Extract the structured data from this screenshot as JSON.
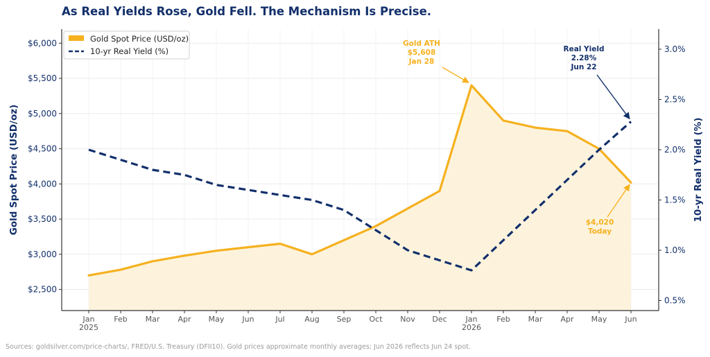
{
  "chart_data": {
    "type": "line",
    "title": "As Real Yields Rose, Gold Fell. The Mechanism Is Precise.",
    "categories": [
      "Jan",
      "Feb",
      "Mar",
      "Apr",
      "May",
      "Jun",
      "Jul",
      "Aug",
      "Sep",
      "Oct",
      "Nov",
      "Dec",
      "Jan",
      "Feb",
      "Mar",
      "Apr",
      "May",
      "Jun"
    ],
    "year_labels": [
      {
        "index": 0,
        "label": "2025"
      },
      {
        "index": 12,
        "label": "2026"
      }
    ],
    "left_axis": {
      "label": "Gold Spot Price (USD/oz)",
      "ylim": [
        2200,
        6200
      ],
      "ticks": [
        2500,
        3000,
        3500,
        4000,
        4500,
        5000,
        5500,
        6000
      ],
      "tick_labels": [
        "$2,500",
        "$3,000",
        "$3,500",
        "$4,000",
        "$4,500",
        "$5,000",
        "$5,500",
        "$6,000"
      ]
    },
    "right_axis": {
      "label": "10-yr Real Yield (%)",
      "ylim": [
        0.4,
        3.2
      ],
      "ticks": [
        0.5,
        1.0,
        1.5,
        2.0,
        2.5,
        3.0
      ],
      "tick_labels": [
        "0.5%",
        "1.0%",
        "1.5%",
        "2.0%",
        "2.5%",
        "3.0%"
      ]
    },
    "series": [
      {
        "name": "Gold Spot Price (USD/oz)",
        "axis": "left",
        "style": "solid",
        "fill": true,
        "color": "#f5b11f",
        "values": [
          2700,
          2780,
          2900,
          2980,
          3050,
          3100,
          3150,
          3000,
          3200,
          3400,
          3650,
          3900,
          5400,
          4900,
          4800,
          4750,
          4500,
          4020
        ]
      },
      {
        "name": "10-yr Real Yield (%)",
        "axis": "right",
        "style": "dashed",
        "color": "#13306b",
        "values": [
          2.0,
          1.9,
          1.8,
          1.75,
          1.65,
          1.6,
          1.55,
          1.5,
          1.4,
          1.2,
          1.0,
          0.9,
          0.8,
          1.1,
          1.4,
          1.7,
          2.0,
          2.28
        ]
      }
    ],
    "legend": {
      "placement": "top-left",
      "entries": [
        "Gold Spot Price (USD/oz)",
        "10-yr Real Yield (%)"
      ]
    },
    "grid": true,
    "annotations": [
      {
        "name": "gold-ath",
        "lines": [
          "Gold ATH",
          "$5,608",
          "Jan 28"
        ],
        "color": "#f5b11f",
        "point_index": 12,
        "series": 0
      },
      {
        "name": "real-yield",
        "lines": [
          "Real Yield",
          "2.28%",
          "Jun 22"
        ],
        "color": "#13306b",
        "point_index": 17,
        "series": 1
      },
      {
        "name": "gold-today",
        "lines": [
          "$4,020",
          "Today"
        ],
        "color": "#f5b11f",
        "point_index": 17,
        "series": 0
      }
    ],
    "source": "Sources: goldsilver.com/price-charts/, FRED/U.S. Treasury (DFII10). Gold prices approximate monthly averages; Jun 2026 reflects Jun 24 spot."
  }
}
